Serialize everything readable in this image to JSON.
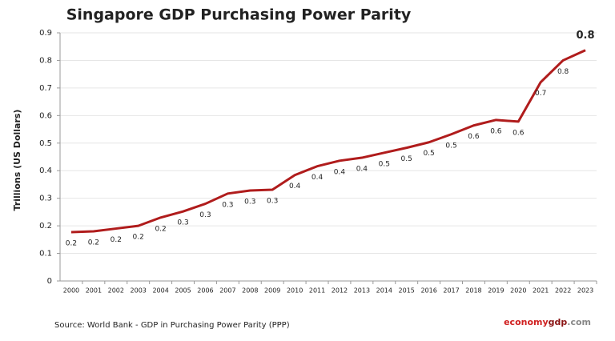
{
  "chart_data": {
    "type": "line",
    "title": "Singapore GDP Purchasing Power Parity",
    "y_label": "Trillions (US Dollars)",
    "categories": [
      "2000",
      "2001",
      "2002",
      "2003",
      "2004",
      "2005",
      "2006",
      "2007",
      "2008",
      "2009",
      "2010",
      "2011",
      "2012",
      "2013",
      "2014",
      "2015",
      "2016",
      "2017",
      "2018",
      "2019",
      "2020",
      "2021",
      "2022",
      "2023"
    ],
    "series": [
      {
        "name": "Singapore GDP PPP",
        "color": "#b01c1c",
        "values": [
          0.177,
          0.18,
          0.19,
          0.2,
          0.23,
          0.252,
          0.28,
          0.317,
          0.328,
          0.331,
          0.384,
          0.416,
          0.436,
          0.447,
          0.465,
          0.483,
          0.503,
          0.532,
          0.564,
          0.584,
          0.578,
          0.721,
          0.8,
          0.837
        ],
        "value_labels": [
          "0.2",
          "0.2",
          "0.2",
          "0.2",
          "0.2",
          "0.3",
          "0.3",
          "0.3",
          "0.3",
          "0.3",
          "0.4",
          "0.4",
          "0.4",
          "0.4",
          "0.5",
          "0.5",
          "0.5",
          "0.5",
          "0.6",
          "0.6",
          "0.6",
          "0.7",
          "0.8",
          "0.8"
        ]
      }
    ],
    "ylim": [
      0,
      0.9
    ],
    "yticks": [
      0,
      0.1,
      0.2,
      0.3,
      0.4,
      0.5,
      0.6,
      0.7,
      0.8,
      0.9
    ],
    "grid": true,
    "source": "Source:  World Bank -  GDP  in Purchasing Power Parity (PPP)",
    "brand": [
      "economy",
      "gdp",
      ".com"
    ]
  }
}
